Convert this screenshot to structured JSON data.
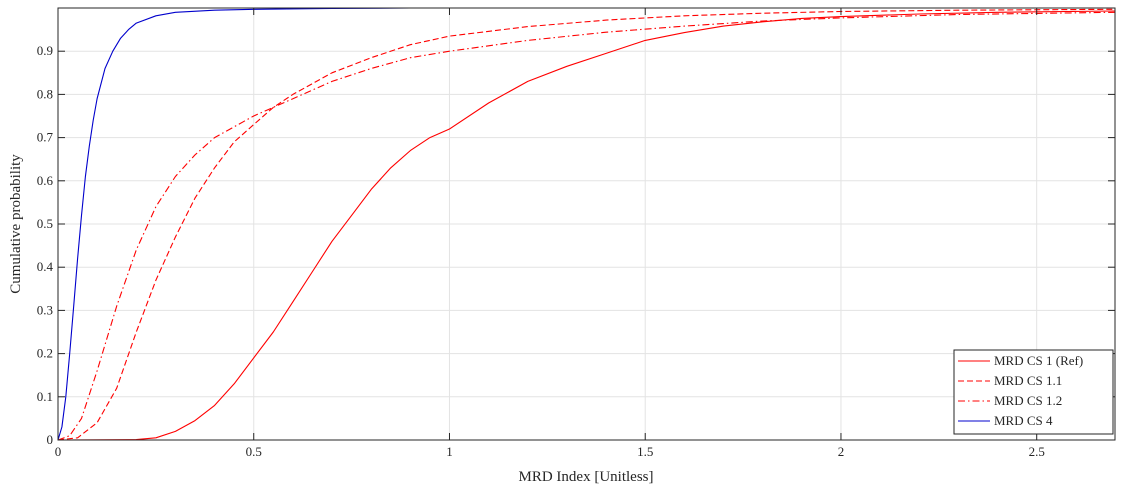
{
  "chart_data": {
    "type": "line",
    "title": "",
    "xlabel": "MRD Index [Unitless]",
    "ylabel": "Cumulative probability",
    "xlim": [
      0,
      2.7
    ],
    "ylim": [
      0,
      1.0
    ],
    "grid": true,
    "legend_position": "bottom-right",
    "x_ticks": [
      0,
      0.5,
      1,
      1.5,
      2,
      2.5
    ],
    "x_tick_labels": [
      "0",
      "0.5",
      "1",
      "1.5",
      "2",
      "2.5"
    ],
    "y_ticks": [
      0,
      0.1,
      0.2,
      0.3,
      0.4,
      0.5,
      0.6,
      0.7,
      0.8,
      0.9
    ],
    "y_tick_labels": [
      "0",
      "0.1",
      "0.2",
      "0.3",
      "0.4",
      "0.5",
      "0.6",
      "0.7",
      "0.8",
      "0.9"
    ],
    "series": [
      {
        "name": "MRD CS 1 (Ref)",
        "color": "#ff0000",
        "dash": "solid",
        "points": [
          [
            0,
            0
          ],
          [
            0.2,
            0.001
          ],
          [
            0.25,
            0.005
          ],
          [
            0.3,
            0.02
          ],
          [
            0.35,
            0.045
          ],
          [
            0.4,
            0.08
          ],
          [
            0.45,
            0.13
          ],
          [
            0.5,
            0.19
          ],
          [
            0.55,
            0.25
          ],
          [
            0.6,
            0.32
          ],
          [
            0.65,
            0.39
          ],
          [
            0.7,
            0.46
          ],
          [
            0.75,
            0.52
          ],
          [
            0.8,
            0.58
          ],
          [
            0.85,
            0.63
          ],
          [
            0.9,
            0.67
          ],
          [
            0.95,
            0.7
          ],
          [
            1.0,
            0.72
          ],
          [
            1.1,
            0.78
          ],
          [
            1.2,
            0.83
          ],
          [
            1.3,
            0.865
          ],
          [
            1.4,
            0.895
          ],
          [
            1.5,
            0.925
          ],
          [
            1.6,
            0.943
          ],
          [
            1.7,
            0.958
          ],
          [
            1.8,
            0.968
          ],
          [
            1.9,
            0.976
          ],
          [
            2.0,
            0.98
          ],
          [
            2.2,
            0.986
          ],
          [
            2.4,
            0.99
          ],
          [
            2.7,
            0.993
          ]
        ]
      },
      {
        "name": "MRD CS 1.1",
        "color": "#ff0000",
        "dash": "dashed",
        "points": [
          [
            0,
            0
          ],
          [
            0.05,
            0.005
          ],
          [
            0.1,
            0.04
          ],
          [
            0.15,
            0.12
          ],
          [
            0.2,
            0.25
          ],
          [
            0.25,
            0.37
          ],
          [
            0.3,
            0.47
          ],
          [
            0.35,
            0.56
          ],
          [
            0.4,
            0.63
          ],
          [
            0.45,
            0.69
          ],
          [
            0.5,
            0.73
          ],
          [
            0.55,
            0.77
          ],
          [
            0.6,
            0.8
          ],
          [
            0.7,
            0.85
          ],
          [
            0.8,
            0.885
          ],
          [
            0.9,
            0.915
          ],
          [
            1.0,
            0.935
          ],
          [
            1.2,
            0.957
          ],
          [
            1.4,
            0.972
          ],
          [
            1.6,
            0.982
          ],
          [
            1.8,
            0.988
          ],
          [
            2.0,
            0.992
          ],
          [
            2.3,
            0.995
          ],
          [
            2.7,
            0.997
          ]
        ]
      },
      {
        "name": "MRD CS 1.2",
        "color": "#ff0000",
        "dash": "dashdot",
        "points": [
          [
            0,
            0
          ],
          [
            0.03,
            0.01
          ],
          [
            0.06,
            0.05
          ],
          [
            0.1,
            0.16
          ],
          [
            0.15,
            0.31
          ],
          [
            0.2,
            0.44
          ],
          [
            0.25,
            0.54
          ],
          [
            0.3,
            0.61
          ],
          [
            0.35,
            0.66
          ],
          [
            0.4,
            0.7
          ],
          [
            0.5,
            0.75
          ],
          [
            0.6,
            0.79
          ],
          [
            0.7,
            0.83
          ],
          [
            0.8,
            0.86
          ],
          [
            0.9,
            0.885
          ],
          [
            1.0,
            0.9
          ],
          [
            1.2,
            0.925
          ],
          [
            1.4,
            0.944
          ],
          [
            1.6,
            0.958
          ],
          [
            1.8,
            0.97
          ],
          [
            2.0,
            0.977
          ],
          [
            2.3,
            0.985
          ],
          [
            2.7,
            0.99
          ]
        ]
      },
      {
        "name": "MRD CS 4",
        "color": "#0000cc",
        "dash": "solid",
        "points": [
          [
            0,
            0
          ],
          [
            0.01,
            0.03
          ],
          [
            0.02,
            0.1
          ],
          [
            0.03,
            0.2
          ],
          [
            0.04,
            0.31
          ],
          [
            0.05,
            0.42
          ],
          [
            0.06,
            0.52
          ],
          [
            0.07,
            0.61
          ],
          [
            0.08,
            0.68
          ],
          [
            0.09,
            0.74
          ],
          [
            0.1,
            0.79
          ],
          [
            0.12,
            0.86
          ],
          [
            0.14,
            0.9
          ],
          [
            0.16,
            0.93
          ],
          [
            0.18,
            0.95
          ],
          [
            0.2,
            0.965
          ],
          [
            0.25,
            0.982
          ],
          [
            0.3,
            0.99
          ],
          [
            0.4,
            0.995
          ],
          [
            0.5,
            0.997
          ],
          [
            0.7,
            0.999
          ],
          [
            0.9,
            1.0
          ]
        ]
      }
    ]
  }
}
